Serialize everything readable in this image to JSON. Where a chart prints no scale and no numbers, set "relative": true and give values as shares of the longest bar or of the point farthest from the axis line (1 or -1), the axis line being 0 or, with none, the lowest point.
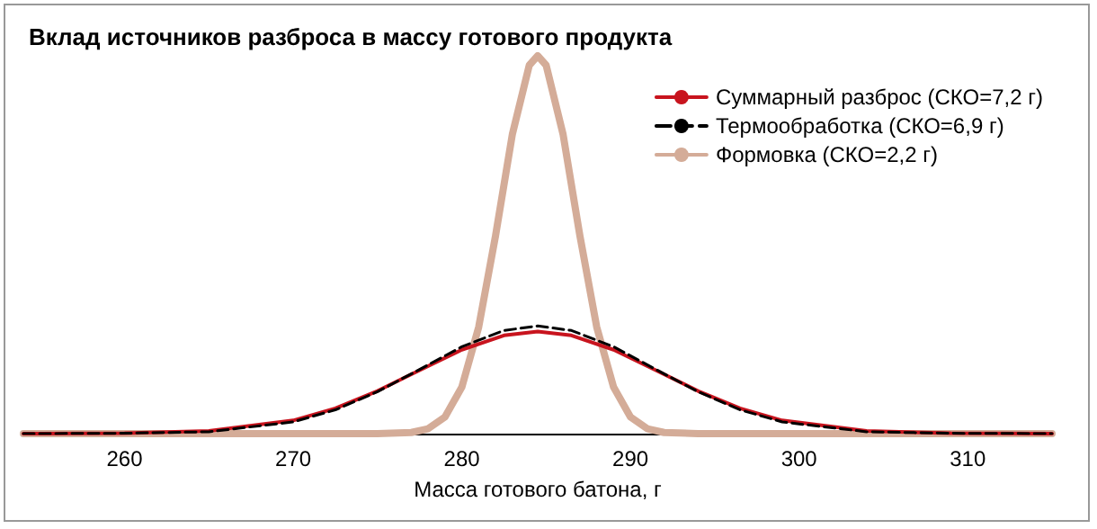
{
  "chart_data": {
    "type": "line",
    "title": "Вклад источников разброса в массу готового продукта",
    "xlabel": "Масса готового батона, г",
    "relative": true,
    "xlim": [
      254,
      315
    ],
    "xticks": [
      260,
      270,
      280,
      290,
      300,
      310
    ],
    "grid": false,
    "legend": "top right",
    "marker": "none",
    "series": [
      {
        "name": "Суммарный разброс (СКО=7,2 г)",
        "color": "#c8141e",
        "line_style": "solid",
        "x": [
          254,
          255,
          260,
          265,
          270,
          272.5,
          275,
          277.5,
          280,
          282.5,
          284.5,
          286.5,
          289,
          291.5,
          294,
          296.5,
          299,
          304,
          309,
          315
        ],
        "values": [
          0,
          0.0001,
          0.001,
          0.007,
          0.035,
          0.067,
          0.113,
          0.168,
          0.222,
          0.26,
          0.27,
          0.26,
          0.222,
          0.168,
          0.113,
          0.067,
          0.035,
          0.007,
          0.001,
          0
        ]
      },
      {
        "name": "Термообработка (СКО=6,9 г)",
        "color": "#000000",
        "line_style": "dashed",
        "x": [
          254,
          255,
          260,
          265,
          270,
          272.5,
          275,
          277.5,
          280,
          282.5,
          284.5,
          286.5,
          289,
          291.5,
          294,
          296.5,
          299,
          304,
          309,
          315
        ],
        "values": [
          0,
          0,
          0.001,
          0.005,
          0.031,
          0.063,
          0.111,
          0.17,
          0.23,
          0.273,
          0.285,
          0.273,
          0.23,
          0.17,
          0.111,
          0.063,
          0.031,
          0.005,
          0.001,
          0
        ]
      },
      {
        "name": "Формовка (СКО=2,2 г)",
        "color": "#d4ac98",
        "line_style": "solid",
        "x": [
          254,
          275,
          277,
          278,
          279,
          280,
          281,
          282,
          283,
          284,
          284.5,
          285,
          286,
          287,
          288,
          289,
          290,
          291,
          292,
          294,
          315
        ],
        "values": [
          0,
          0,
          0.003,
          0.013,
          0.044,
          0.123,
          0.282,
          0.524,
          0.793,
          0.975,
          1,
          0.975,
          0.793,
          0.524,
          0.282,
          0.123,
          0.044,
          0.013,
          0.003,
          0,
          0
        ]
      }
    ]
  }
}
